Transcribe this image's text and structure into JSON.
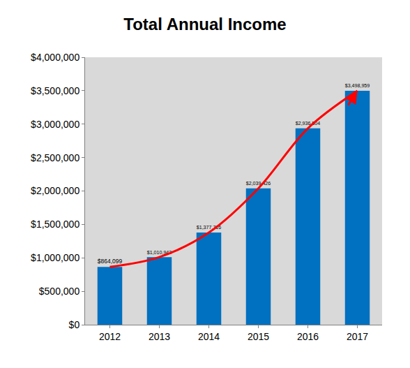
{
  "chart_data": {
    "type": "bar",
    "title": "Total Annual Income",
    "categories": [
      "2012",
      "2013",
      "2014",
      "2015",
      "2016",
      "2017"
    ],
    "values": [
      864099,
      1010942,
      1377716,
      2039426,
      2936504,
      3498959
    ],
    "value_labels": [
      "$864,099",
      "$1,010,942",
      "$1,377,716",
      "$2,039,426",
      "$2,936,504",
      "$3,498,959"
    ],
    "color": "#0070c0",
    "data_labels": true,
    "ylim": [
      0,
      4000000
    ],
    "yticks": [
      {
        "value": 0,
        "label": "$0"
      },
      {
        "value": 500000,
        "label": "$500,000"
      },
      {
        "value": 1000000,
        "label": "$1,000,000"
      },
      {
        "value": 1500000,
        "label": "$1,500,000"
      },
      {
        "value": 2000000,
        "label": "$2,000,000"
      },
      {
        "value": 2500000,
        "label": "$2,500,000"
      },
      {
        "value": 3000000,
        "label": "$3,000,000"
      },
      {
        "value": 3500000,
        "label": "$3,500,000"
      },
      {
        "value": 4000000,
        "label": "$4,000,000"
      }
    ],
    "grid": false
  }
}
